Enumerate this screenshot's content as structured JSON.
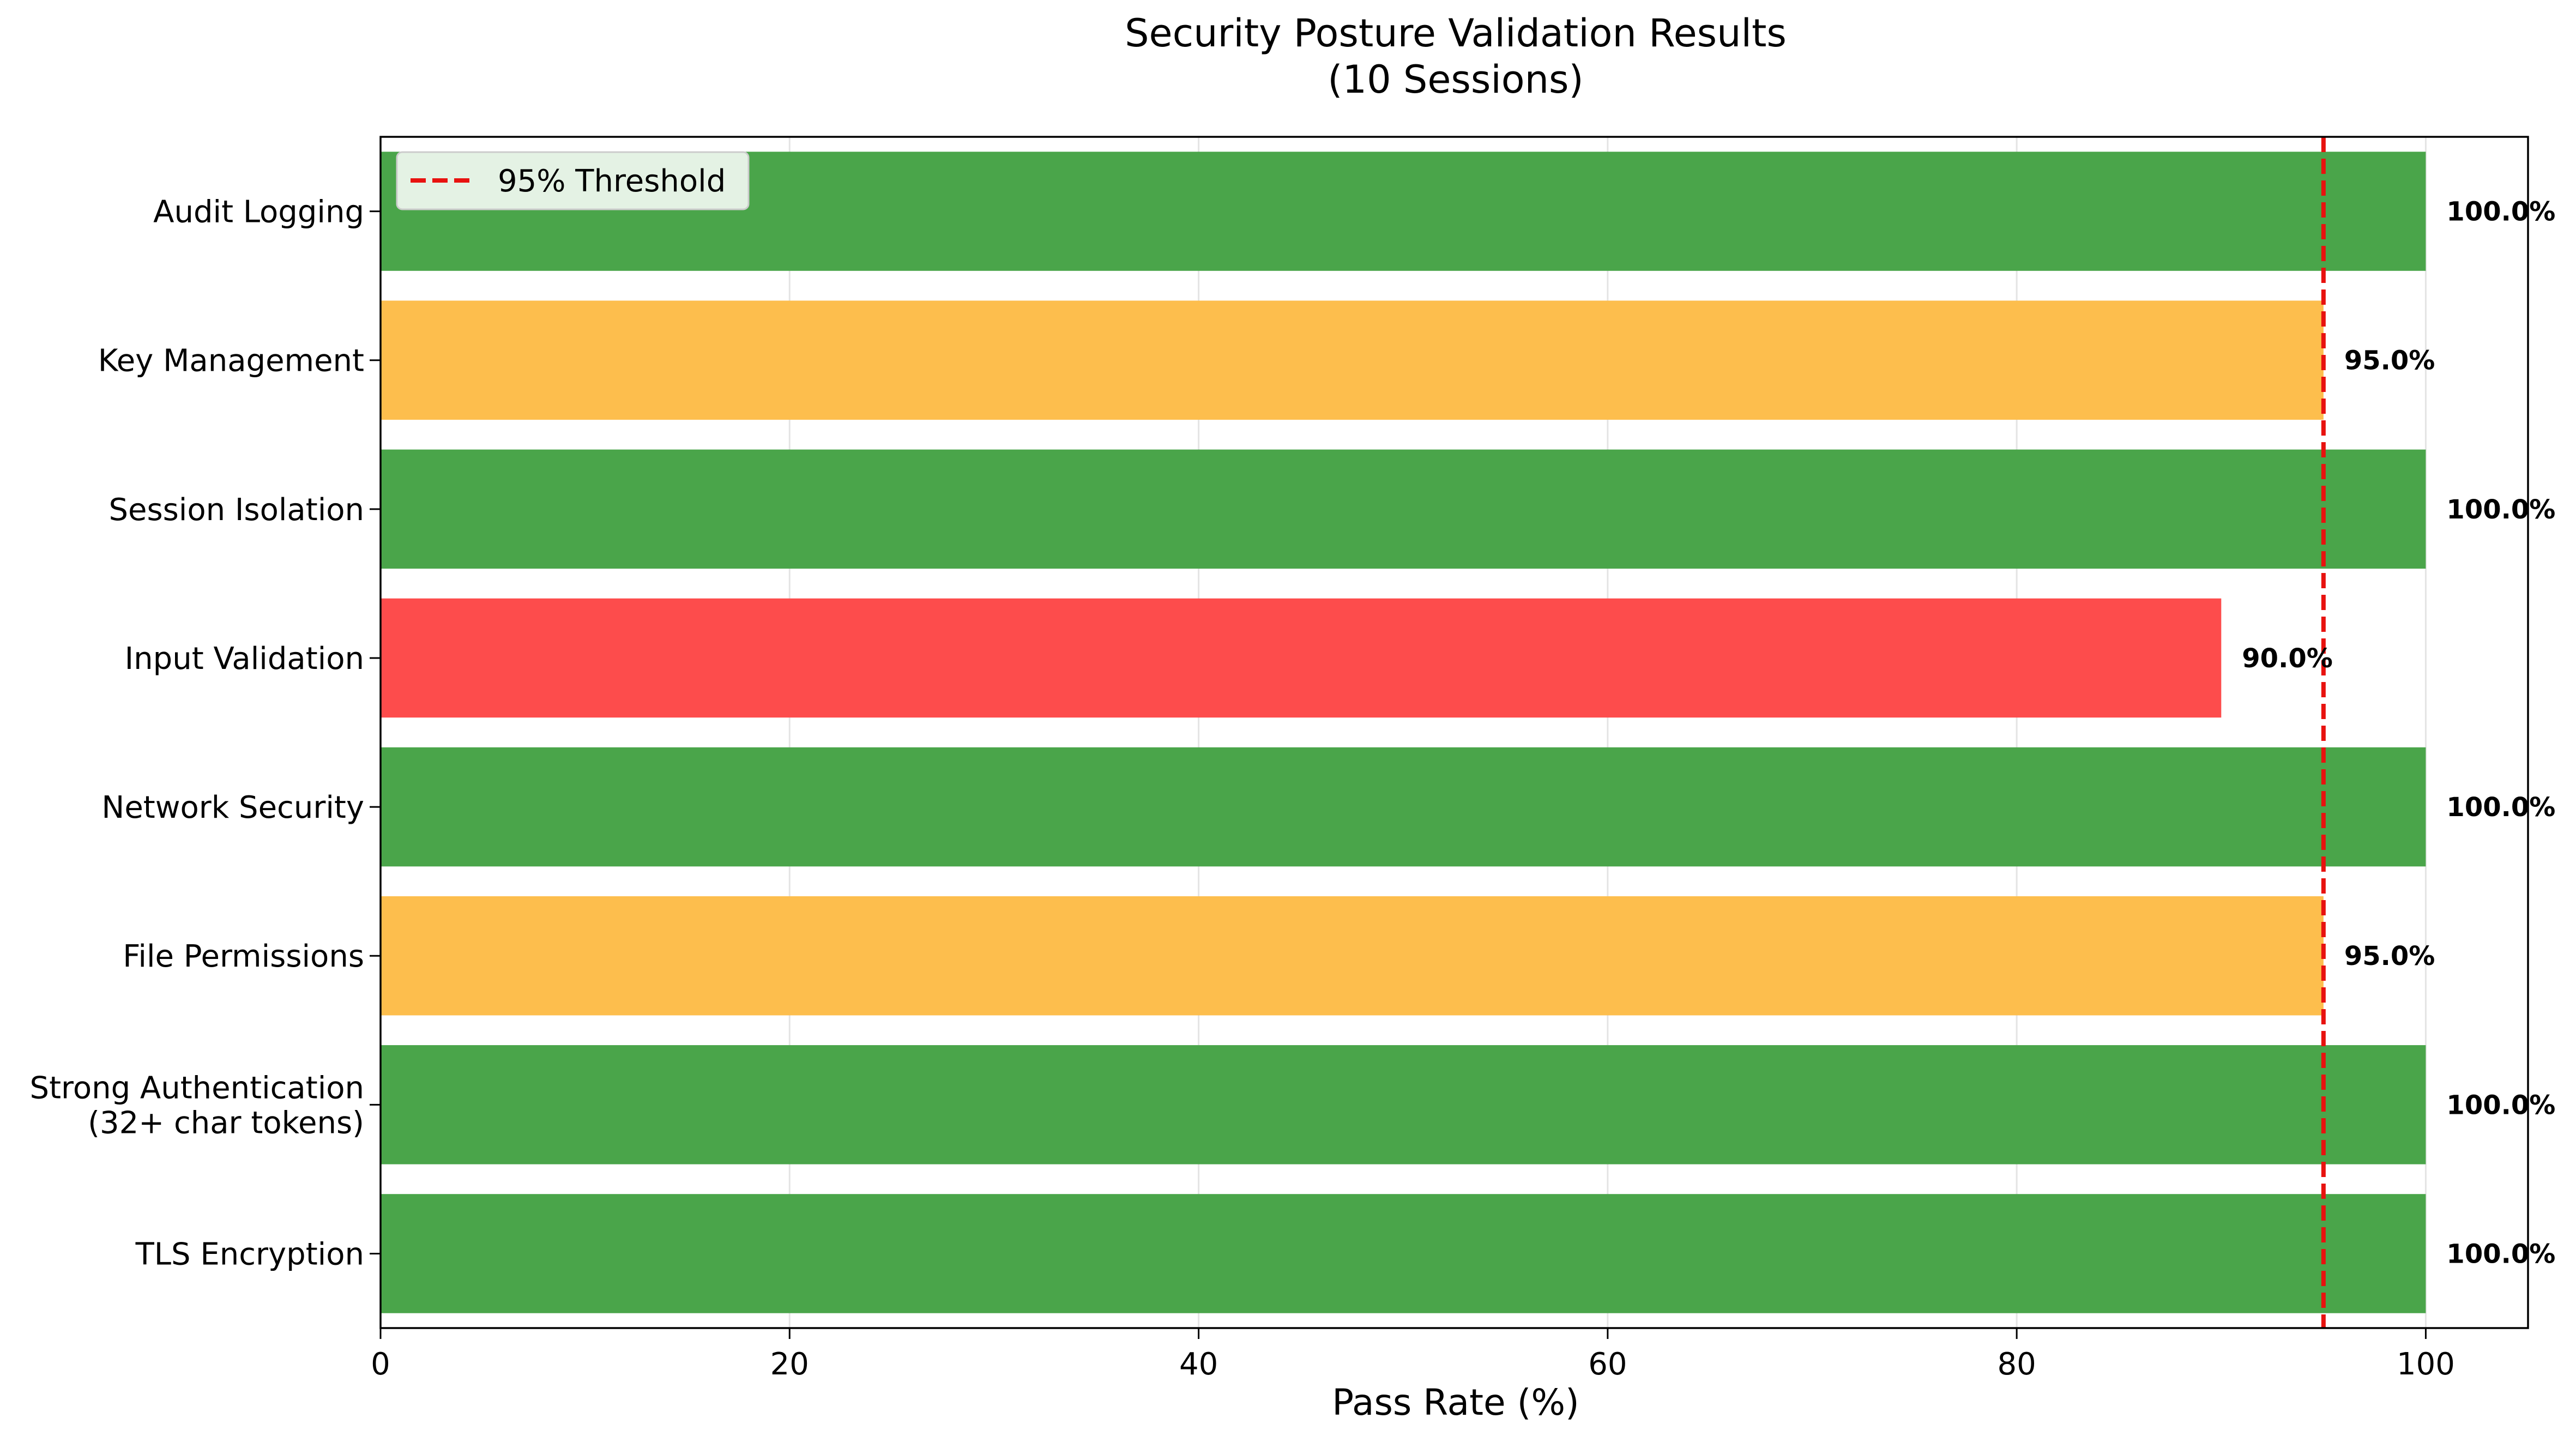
{
  "chart_data": {
    "type": "bar",
    "orientation": "horizontal",
    "title": "Security Posture Validation Results",
    "subtitle": "(10 Sessions)",
    "xlabel": "Pass Rate (%)",
    "ylabel": "",
    "xlim": [
      0,
      105
    ],
    "xticks": [
      0,
      20,
      40,
      60,
      80,
      100
    ],
    "grid": "x",
    "legend_placement": "top-left",
    "categories": [
      [
        "TLS Encryption"
      ],
      [
        "Strong Authentication",
        "(32+ char tokens)"
      ],
      [
        "File Permissions"
      ],
      [
        "Network Security"
      ],
      [
        "Input Validation"
      ],
      [
        "Session Isolation"
      ],
      [
        "Key Management"
      ],
      [
        "Audit Logging"
      ]
    ],
    "values": [
      100,
      100,
      95,
      100,
      90,
      100,
      95,
      100
    ],
    "value_labels": [
      "100.0%",
      "100.0%",
      "95.0%",
      "100.0%",
      "90.0%",
      "100.0%",
      "95.0%",
      "100.0%"
    ],
    "bar_colors": [
      "#4aa54a",
      "#4aa54a",
      "#fdbe4d",
      "#4aa54a",
      "#fd4c4c",
      "#4aa54a",
      "#fdbe4d",
      "#4aa54a"
    ],
    "threshold": {
      "value": 95,
      "label": "95% Threshold",
      "color": "#e8120f",
      "style": "dashed"
    }
  }
}
